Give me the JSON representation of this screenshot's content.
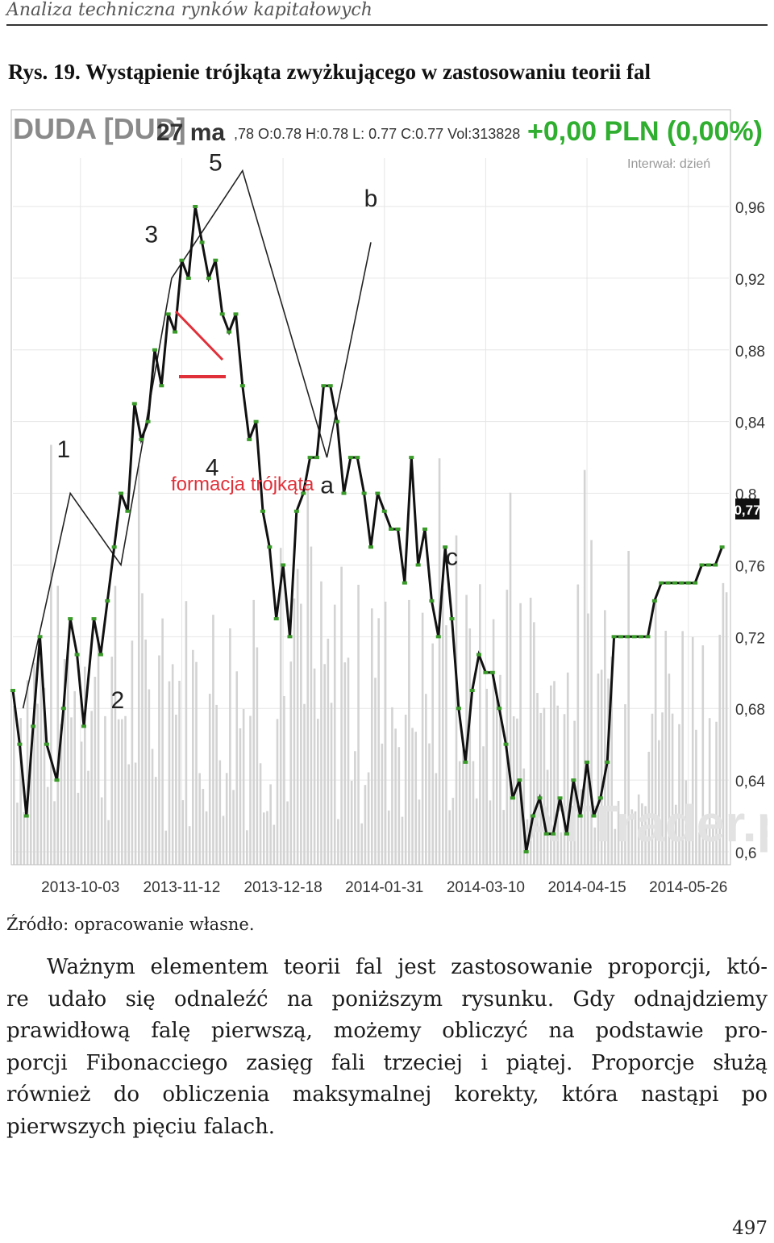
{
  "running_header": "Analiza techniczna rynków kapitałowych",
  "figure_title": "Rys. 19. Wystąpienie trójkąta zwyżkującego w zastosowaniu teorii fal",
  "chart_data": {
    "type": "line",
    "instrument": "DUDA [DUD]",
    "date_label": "27 ma",
    "ohlc_text": ",78 O:0.78 H:0.78 L: 0.77 C:0.77 Vol:313828",
    "change_text": "+0,00 PLN (0,00%)",
    "interval_text": "Interwał: dzień",
    "watermark": "ATTrader.pl",
    "current_value_label": "0,77",
    "y_ticks": [
      "0,96",
      "0,92",
      "0,88",
      "0,84",
      "0,8",
      "0,76",
      "0,72",
      "0,68",
      "0,64",
      "0,6"
    ],
    "y_tick_values": [
      0.96,
      0.92,
      0.88,
      0.84,
      0.8,
      0.76,
      0.72,
      0.68,
      0.64,
      0.6
    ],
    "ylim": [
      0.6,
      0.98
    ],
    "x_ticks": [
      "2013-10-03",
      "2013-11-12",
      "2013-12-18",
      "2014-01-31",
      "2014-03-10",
      "2014-04-15",
      "2014-05-26"
    ],
    "x_tick_positions": [
      20,
      50,
      80,
      110,
      140,
      170,
      200
    ],
    "xlim": [
      0,
      212
    ],
    "price": {
      "x": [
        0,
        2,
        4,
        6,
        8,
        10,
        13,
        15,
        17,
        19,
        21,
        24,
        26,
        28,
        30,
        32,
        34,
        36,
        38,
        40,
        42,
        44,
        46,
        48,
        50,
        52,
        54,
        56,
        58,
        60,
        62,
        64,
        66,
        68,
        70,
        72,
        74,
        76,
        78,
        80,
        82,
        84,
        86,
        88,
        90,
        92,
        94,
        96,
        98,
        100,
        102,
        104,
        106,
        108,
        110,
        112,
        114,
        116,
        118,
        120,
        122,
        124,
        126,
        128,
        130,
        132,
        134,
        136,
        138,
        140,
        142,
        144,
        146,
        148,
        150,
        152,
        154,
        156,
        158,
        160,
        162,
        164,
        166,
        168,
        170,
        172,
        174,
        176,
        178,
        180,
        182,
        184,
        186,
        188,
        190,
        192,
        194,
        196,
        198,
        200,
        202,
        204,
        206,
        208,
        210
      ],
      "y": [
        0.69,
        0.66,
        0.62,
        0.67,
        0.72,
        0.66,
        0.64,
        0.68,
        0.73,
        0.71,
        0.67,
        0.73,
        0.71,
        0.74,
        0.77,
        0.8,
        0.79,
        0.85,
        0.83,
        0.84,
        0.88,
        0.86,
        0.9,
        0.89,
        0.93,
        0.92,
        0.96,
        0.94,
        0.92,
        0.93,
        0.9,
        0.89,
        0.9,
        0.86,
        0.83,
        0.84,
        0.79,
        0.77,
        0.73,
        0.76,
        0.72,
        0.79,
        0.8,
        0.82,
        0.82,
        0.86,
        0.86,
        0.84,
        0.8,
        0.82,
        0.82,
        0.8,
        0.77,
        0.8,
        0.79,
        0.78,
        0.78,
        0.75,
        0.82,
        0.76,
        0.78,
        0.74,
        0.72,
        0.77,
        0.73,
        0.68,
        0.65,
        0.69,
        0.71,
        0.7,
        0.7,
        0.68,
        0.66,
        0.63,
        0.64,
        0.6,
        0.62,
        0.63,
        0.61,
        0.61,
        0.63,
        0.61,
        0.64,
        0.62,
        0.65,
        0.62,
        0.63,
        0.65,
        0.72,
        0.72,
        0.72,
        0.72,
        0.72,
        0.72,
        0.74,
        0.75,
        0.75,
        0.75,
        0.75,
        0.75,
        0.75,
        0.76,
        0.76,
        0.76,
        0.77
      ]
    },
    "wave_line": {
      "x": [
        3,
        17,
        32,
        47,
        68,
        93,
        106
      ],
      "y": [
        0.68,
        0.8,
        0.76,
        0.92,
        0.98,
        0.82,
        0.94
      ]
    },
    "wave_labels": [
      {
        "text": "1",
        "x": 15,
        "y": 0.82
      },
      {
        "text": "2",
        "x": 31,
        "y": 0.68
      },
      {
        "text": "3",
        "x": 41,
        "y": 0.94
      },
      {
        "text": "4",
        "x": 59,
        "y": 0.81
      },
      {
        "text": "5",
        "x": 60,
        "y": 0.98
      },
      {
        "text": "a",
        "x": 93,
        "y": 0.8
      },
      {
        "text": "b",
        "x": 106,
        "y": 0.96
      },
      {
        "text": "c",
        "x": 130,
        "y": 0.76
      }
    ],
    "annotation": "formacja trójkąta",
    "volume_note": "histogram obrotu w tle"
  },
  "source_text": "Źródło: opracowanie własne.",
  "body_lines": [
    "Ważnym elementem teorii fal jest zastosowanie proporcji, któ-",
    "re udało się odnaleźć na poniższym rysunku. Gdy odnajdziemy",
    "prawidłową falę pierwszą, możemy obliczyć na podstawie pro-",
    "porcji Fibonacciego zasięg fali trzeciej i piątej. Proporcje służą",
    "również do obliczenia maksymalnej korekty, która nastąpi po",
    "pierwszych pięciu falach."
  ],
  "page_number": "497",
  "colors": {
    "price_line": "#111111",
    "price_markers": "#3a9a2a",
    "triangle": "#e0303a",
    "header_text": "#8a8a8a",
    "change_green": "#2fae2f",
    "grid": "#dddddd",
    "volume": "#cfcfcf"
  }
}
